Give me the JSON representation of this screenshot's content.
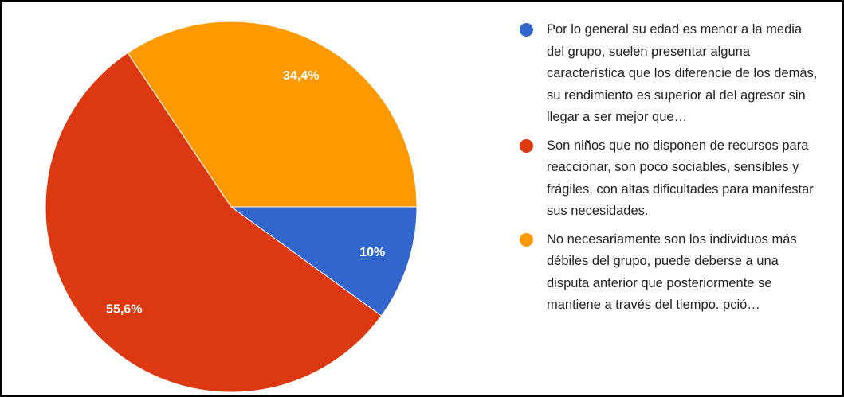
{
  "chart_data": {
    "type": "pie",
    "categories": [
      "Por lo general su edad es menor a la media del grupo, suelen presentar alguna característica que los diferencie de los demás, su rendimiento es superior al del agresor sin llegar a ser mejor que…",
      "Son niños que no disponen de recursos para reaccionar, son poco sociables, sensibles y frágiles, con altas dificultades para manifestar sus necesidades.",
      "No necesariamente son los individuos más débiles del grupo, puede deberse a una disputa anterior que posteriormente se mantiene a través del tiempo. pció…"
    ],
    "values": [
      10,
      55.6,
      34.4
    ],
    "value_labels": [
      "10%",
      "55,6%",
      "34,4%"
    ],
    "colors": [
      "#3366cc",
      "#dc3912",
      "#ff9900"
    ],
    "legend": "right"
  }
}
